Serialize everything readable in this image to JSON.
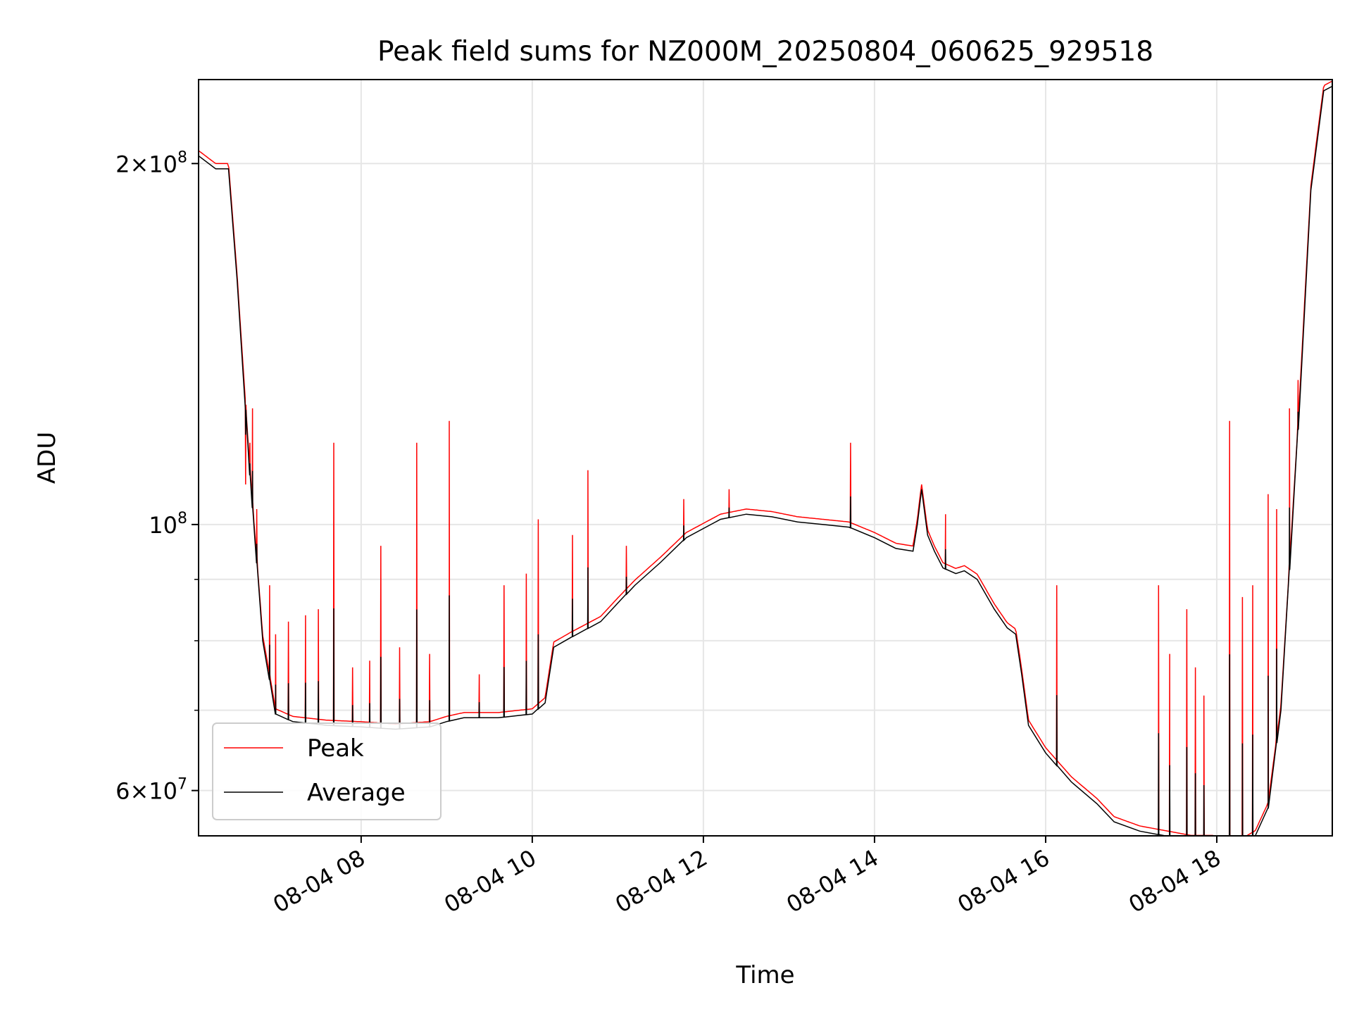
{
  "chart_data": {
    "type": "line",
    "title": "Peak field sums for NZ000M_20250804_060625_929518",
    "xlabel": "Time",
    "ylabel": "ADU",
    "x_range_hours": [
      6.1,
      19.35
    ],
    "ylim": [
      55000000,
      235000000
    ],
    "y_scale": "log",
    "grid": true,
    "legend_position": "lower-left",
    "x_ticks": [
      {
        "value": 8,
        "label": "08-04 08"
      },
      {
        "value": 10,
        "label": "08-04 10"
      },
      {
        "value": 12,
        "label": "08-04 12"
      },
      {
        "value": 14,
        "label": "08-04 14"
      },
      {
        "value": 16,
        "label": "08-04 16"
      },
      {
        "value": 18,
        "label": "08-04 18"
      }
    ],
    "y_ticks": [
      {
        "value": 60000000,
        "mantissa": "6",
        "exponent": "7"
      },
      {
        "value": 100000000,
        "mantissa": "",
        "exponent": "8"
      },
      {
        "value": 200000000,
        "mantissa": "2",
        "exponent": "8"
      }
    ],
    "y_minor_ticks": [
      70000000,
      80000000,
      90000000
    ],
    "series": [
      {
        "name": "Average",
        "color": "#000000",
        "x": [
          6.1,
          6.3,
          6.45,
          6.55,
          6.7,
          6.85,
          7.0,
          7.2,
          7.6,
          8.0,
          8.4,
          8.8,
          9.0,
          9.2,
          9.6,
          10.0,
          10.15,
          10.25,
          10.45,
          10.8,
          11.0,
          11.2,
          11.5,
          11.8,
          12.2,
          12.5,
          12.8,
          13.1,
          13.4,
          13.7,
          14.0,
          14.25,
          14.45,
          14.5,
          14.55,
          14.62,
          14.7,
          14.8,
          14.95,
          15.05,
          15.2,
          15.4,
          15.55,
          15.65,
          15.72,
          15.8,
          16.0,
          16.3,
          16.6,
          16.8,
          17.1,
          17.4,
          17.7,
          17.95,
          18.1,
          18.3,
          18.45,
          18.6,
          18.75,
          18.95,
          19.1,
          19.25,
          19.35
        ],
        "y": [
          203000000,
          198000000,
          198000000,
          160000000,
          110000000,
          80000000,
          69500000,
          68500000,
          68000000,
          67800000,
          67500000,
          67800000,
          68500000,
          69000000,
          69000000,
          69500000,
          71000000,
          79000000,
          80500000,
          83000000,
          86000000,
          89000000,
          93000000,
          97500000,
          101000000,
          102000000,
          101500000,
          100500000,
          100000000,
          99500000,
          97500000,
          95500000,
          95000000,
          100000000,
          107000000,
          98000000,
          95000000,
          92000000,
          91000000,
          91500000,
          90000000,
          85000000,
          82000000,
          81000000,
          75000000,
          68000000,
          64500000,
          61000000,
          58500000,
          56500000,
          55500000,
          55000000,
          54500000,
          54500000,
          54200000,
          54200000,
          55000000,
          58000000,
          70000000,
          120000000,
          190000000,
          230000000,
          232000000
        ]
      },
      {
        "name": "Peak",
        "color": "#ff0000",
        "spikes": [
          {
            "x": 6.65,
            "y": 108000000
          },
          {
            "x": 6.7,
            "y": 117000000
          },
          {
            "x": 6.73,
            "y": 125000000
          },
          {
            "x": 6.78,
            "y": 103000000
          },
          {
            "x": 6.93,
            "y": 89000000
          },
          {
            "x": 7.0,
            "y": 81000000
          },
          {
            "x": 7.15,
            "y": 83000000
          },
          {
            "x": 7.35,
            "y": 84000000
          },
          {
            "x": 7.5,
            "y": 85000000
          },
          {
            "x": 7.68,
            "y": 117000000
          },
          {
            "x": 7.9,
            "y": 76000000
          },
          {
            "x": 8.1,
            "y": 77000000
          },
          {
            "x": 8.23,
            "y": 96000000
          },
          {
            "x": 8.45,
            "y": 79000000
          },
          {
            "x": 8.65,
            "y": 117000000
          },
          {
            "x": 8.8,
            "y": 78000000
          },
          {
            "x": 9.03,
            "y": 122000000
          },
          {
            "x": 9.38,
            "y": 75000000
          },
          {
            "x": 9.67,
            "y": 89000000
          },
          {
            "x": 9.93,
            "y": 91000000
          },
          {
            "x": 10.07,
            "y": 101000000
          },
          {
            "x": 10.47,
            "y": 98000000
          },
          {
            "x": 10.65,
            "y": 111000000
          },
          {
            "x": 11.1,
            "y": 96000000
          },
          {
            "x": 11.77,
            "y": 105000000
          },
          {
            "x": 12.3,
            "y": 107000000
          },
          {
            "x": 13.72,
            "y": 117000000
          },
          {
            "x": 14.83,
            "y": 102000000
          },
          {
            "x": 16.13,
            "y": 89000000
          },
          {
            "x": 17.32,
            "y": 89000000
          },
          {
            "x": 17.45,
            "y": 78000000
          },
          {
            "x": 17.65,
            "y": 85000000
          },
          {
            "x": 17.75,
            "y": 76000000
          },
          {
            "x": 17.85,
            "y": 72000000
          },
          {
            "x": 18.15,
            "y": 122000000
          },
          {
            "x": 18.3,
            "y": 87000000
          },
          {
            "x": 18.42,
            "y": 89000000
          },
          {
            "x": 18.6,
            "y": 106000000
          },
          {
            "x": 18.7,
            "y": 103000000
          },
          {
            "x": 18.85,
            "y": 125000000
          },
          {
            "x": 18.95,
            "y": 132000000
          }
        ]
      }
    ]
  }
}
